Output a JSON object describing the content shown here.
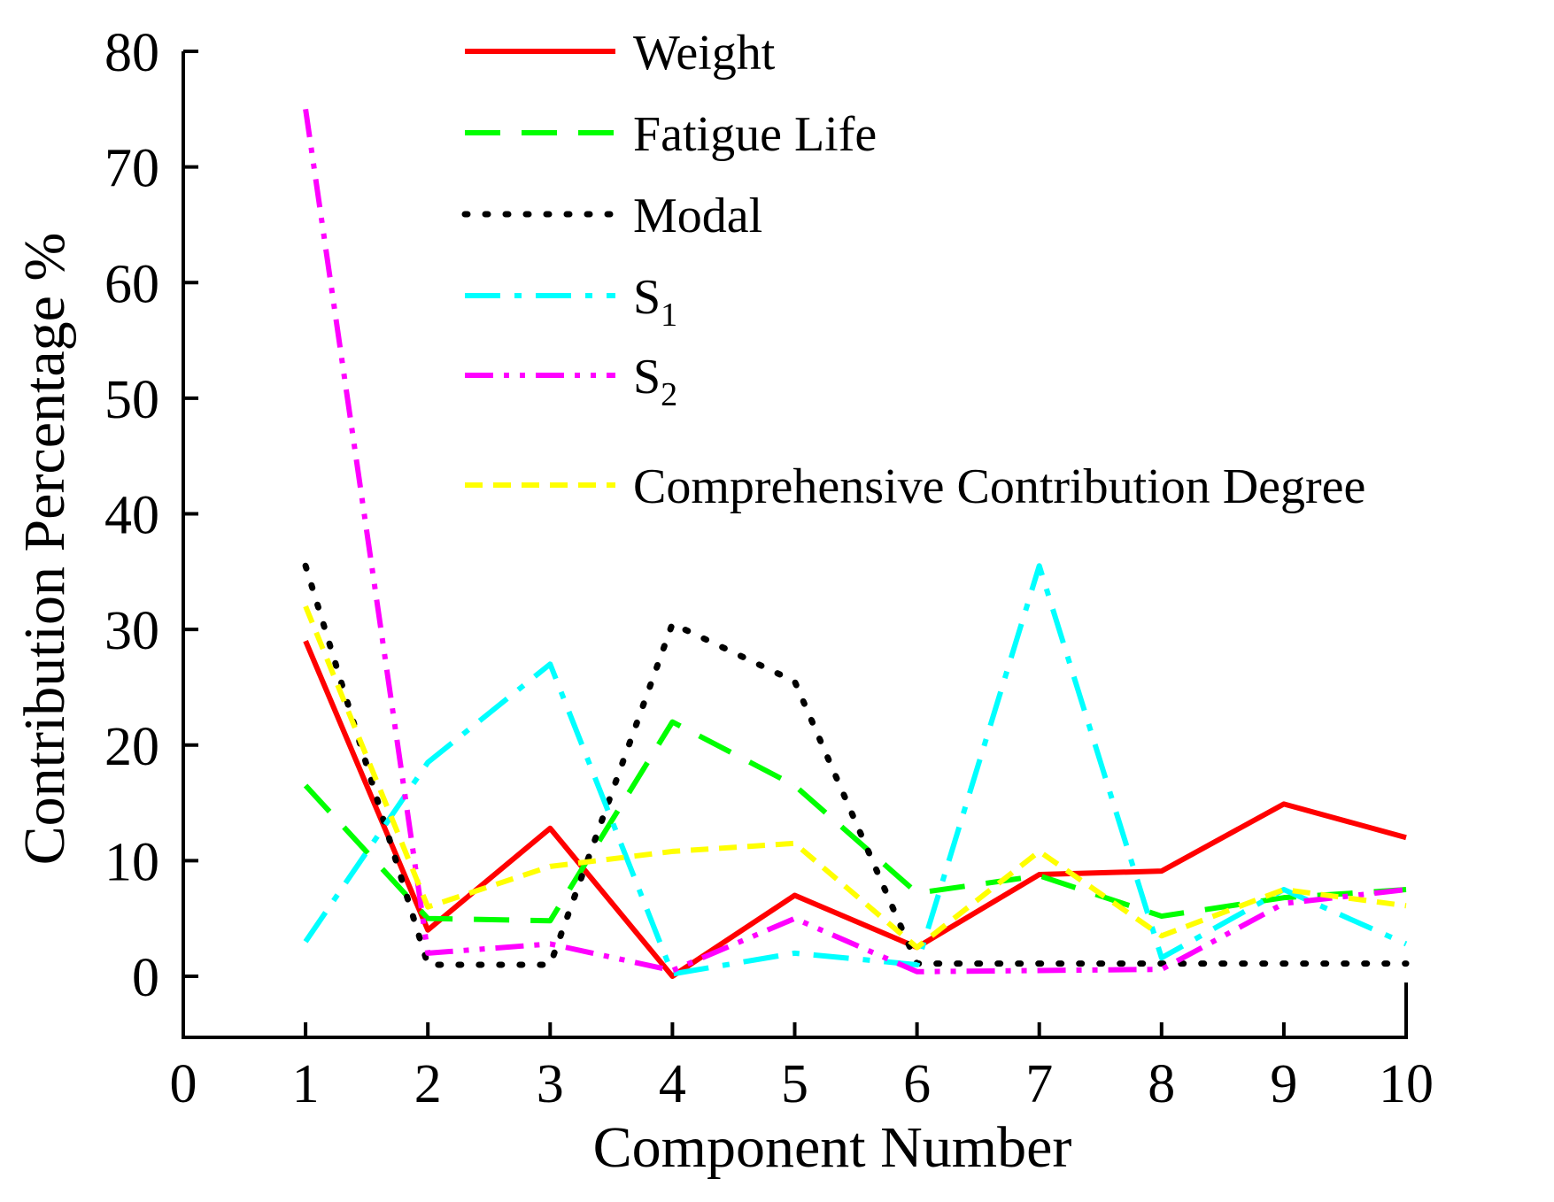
{
  "chart_data": {
    "type": "line",
    "title": "",
    "xlabel": "Component Number",
    "ylabel": "Contribution Percentage %",
    "xlim": [
      0,
      10
    ],
    "ylim": [
      -5,
      80
    ],
    "x_ticks": [
      0,
      1,
      2,
      3,
      4,
      5,
      6,
      7,
      8,
      9,
      10
    ],
    "y_ticks": [
      0,
      10,
      20,
      30,
      40,
      50,
      60,
      70,
      80
    ],
    "x": [
      1,
      2,
      3,
      4,
      5,
      6,
      7,
      8,
      9,
      10
    ],
    "legend_position": "top-right",
    "series": [
      {
        "id": "weight",
        "name": "Weight",
        "sub": "",
        "color": "#ff0000",
        "dash": "solid",
        "values": [
          29,
          4,
          12.8,
          0,
          7,
          2.5,
          8.8,
          9.1,
          14.9,
          12
        ]
      },
      {
        "id": "fatigue",
        "name": "Fatigue Life",
        "sub": "",
        "color": "#00ff00",
        "dash": "dash",
        "values": [
          16.5,
          5,
          4.8,
          22,
          16.5,
          7.2,
          8.7,
          5.2,
          6.8,
          7.5
        ]
      },
      {
        "id": "modal",
        "name": "Modal",
        "sub": "",
        "color": "#000000",
        "dash": "dot",
        "values": [
          35.5,
          1,
          1,
          30.5,
          25.5,
          1.1,
          1.1,
          1.1,
          1.1,
          1.1
        ]
      },
      {
        "id": "s1",
        "name": "S",
        "sub": "1",
        "color": "#00ffff",
        "dash": "dashdot",
        "values": [
          3,
          18.5,
          27,
          0.2,
          2,
          1,
          35.5,
          1.6,
          7.5,
          2.8
        ]
      },
      {
        "id": "s2",
        "name": "S",
        "sub": "2",
        "color": "#ff00ff",
        "dash": "dashdotdot",
        "values": [
          75,
          2,
          2.8,
          0.5,
          5,
          0.4,
          0.5,
          0.6,
          6.3,
          7.5
        ]
      },
      {
        "id": "ccd",
        "name": "Comprehensive Contribution Degree",
        "sub": "",
        "color": "#ffff00",
        "dash": "shortdash",
        "values": [
          32,
          6,
          9.5,
          10.8,
          11.5,
          2.5,
          10.8,
          3.5,
          7.5,
          6.1
        ]
      }
    ]
  }
}
